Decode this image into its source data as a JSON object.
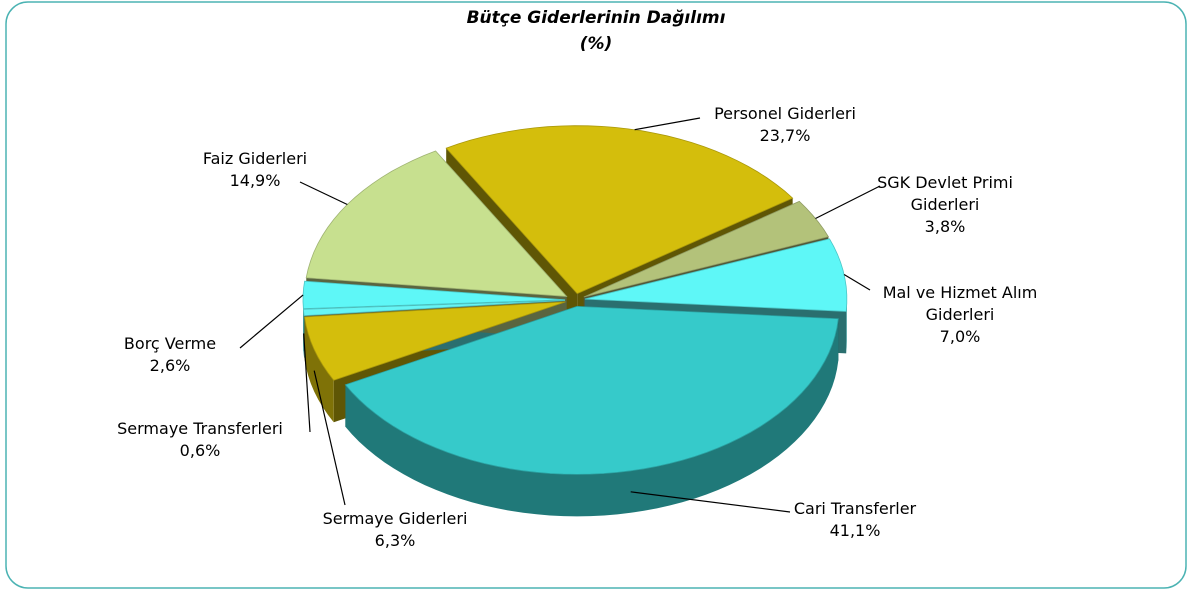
{
  "chart_data": {
    "type": "pie",
    "title": "Bütçe Giderlerinin Dağılımı",
    "subtitle": "(%)",
    "categories": [
      "Personel Giderleri",
      "SGK Devlet Primi Giderleri",
      "Mal ve Hizmet Alım Giderleri",
      "Cari Transferler",
      "Sermaye Giderleri",
      "Sermaye Transferleri",
      "Borç Verme",
      "Faiz Giderleri"
    ],
    "values": [
      23.7,
      3.8,
      7.0,
      41.1,
      6.3,
      0.6,
      2.6,
      14.9
    ],
    "value_labels": [
      "23,7%",
      "3,8%",
      "7,0%",
      "41,1%",
      "6,3%",
      "0,6%",
      "2,6%",
      "14,9%"
    ],
    "colors": [
      "#d4be0c",
      "#b3c27a",
      "#5ef7f7",
      "#36caca",
      "#d4be0c",
      "#66f5f5",
      "#5ef7f7",
      "#c7e08f"
    ]
  }
}
